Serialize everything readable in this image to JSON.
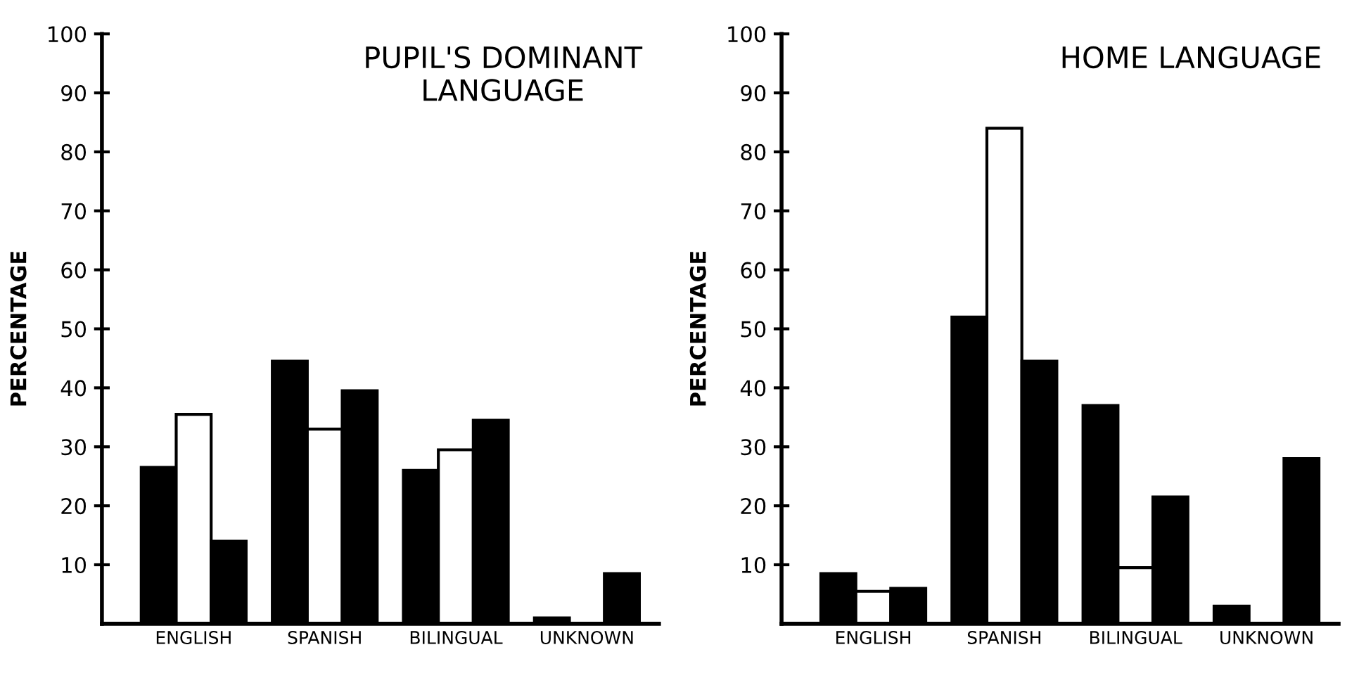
{
  "chart_data": [
    {
      "type": "bar",
      "title": "PUPIL'S DOMINANT\nLANGUAGE",
      "ylabel": "PERCENTAGE",
      "categories": [
        "ENGLISH",
        "SPANISH",
        "BILINGUAL",
        "UNKNOWN"
      ],
      "series": [
        {
          "color": "#000000",
          "values": [
            26.5,
            44.5,
            26,
            1
          ]
        },
        {
          "color": "#ffffff",
          "values": [
            35.5,
            33,
            29.5,
            null
          ]
        },
        {
          "color": "#000000",
          "values": [
            14,
            39.5,
            34.5,
            8.5
          ]
        }
      ],
      "ylim": [
        0,
        100
      ],
      "yticks": [
        10,
        20,
        30,
        40,
        50,
        60,
        70,
        80,
        90,
        100
      ],
      "grid": false,
      "legend": false
    },
    {
      "type": "bar",
      "title": "HOME LANGUAGE",
      "ylabel": "PERCENTAGE",
      "categories": [
        "ENGLISH",
        "SPANISH",
        "BILINGUAL",
        "UNKNOWN"
      ],
      "series": [
        {
          "color": "#000000",
          "values": [
            8.5,
            52,
            37,
            3
          ]
        },
        {
          "color": "#ffffff",
          "values": [
            5.5,
            84,
            9.5,
            null
          ]
        },
        {
          "color": "#000000",
          "values": [
            6,
            44.5,
            21.5,
            28
          ]
        }
      ],
      "ylim": [
        0,
        100
      ],
      "yticks": [
        10,
        20,
        30,
        40,
        50,
        60,
        70,
        80,
        90,
        100
      ],
      "grid": false,
      "legend": false
    }
  ]
}
